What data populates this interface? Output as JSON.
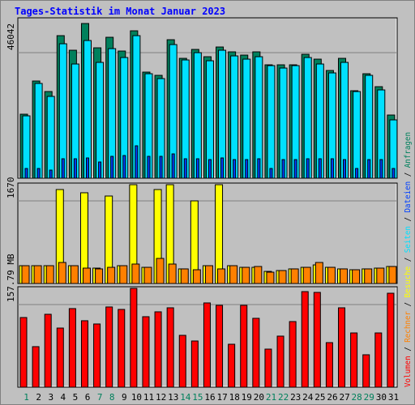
{
  "chart_data": [
    {
      "type": "bar",
      "title": "Tages-Statistik im Monat Januar 2023",
      "ylim": [
        0,
        58815
      ],
      "yticks": [
        46042
      ],
      "series": [
        {
          "name": "Anfragen",
          "color": "#00805c",
          "values": [
            23466,
            35640,
            31779,
            52272,
            46926,
            56727,
            47817,
            51678,
            46629,
            54054,
            38907,
            37719,
            50787,
            43956,
            47223,
            44550,
            48114,
            46332,
            45144,
            46332,
            41580,
            41580,
            41580,
            45441,
            43659,
            39501,
            43956,
            32076,
            38313,
            33561,
            23166
          ]
        },
        {
          "name": "Seiten",
          "color": "#00e0ff",
          "values": [
            22869,
            34749,
            29997,
            49302,
            41877,
            50490,
            42471,
            47520,
            44253,
            52272,
            38313,
            36531,
            49005,
            43362,
            46035,
            43065,
            46926,
            44847,
            43659,
            44550,
            41283,
            40392,
            41283,
            44253,
            41877,
            38610,
            42471,
            31779,
            37719,
            32373,
            21384
          ]
        },
        {
          "name": "Dateien",
          "color": "#0040ff",
          "values": [
            3564,
            3564,
            2970,
            7128,
            7128,
            7425,
            5940,
            8019,
            8316,
            11880,
            8019,
            8019,
            8910,
            7128,
            7128,
            6831,
            7425,
            6831,
            6831,
            7128,
            3564,
            6831,
            6831,
            7128,
            7128,
            7128,
            6831,
            3564,
            6831,
            6831,
            3564
          ]
        }
      ]
    },
    {
      "type": "bar",
      "ylim": [
        0,
        2030
      ],
      "yticks": [
        1670
      ],
      "series": [
        {
          "name": "Besuche",
          "color": "#ffff00",
          "values": [
            360,
            360,
            360,
            1899,
            360,
            1834,
            311,
            1768,
            360,
            1997,
            327,
            1899,
            1997,
            295,
            1670,
            360,
            1997,
            360,
            327,
            327,
            245,
            262,
            295,
            327,
            376,
            327,
            295,
            278,
            295,
            311,
            344
          ]
        },
        {
          "name": "Rechner",
          "color": "#ff8000",
          "values": [
            360,
            360,
            360,
            425,
            360,
            311,
            295,
            327,
            360,
            393,
            327,
            507,
            393,
            295,
            278,
            360,
            295,
            360,
            327,
            344,
            229,
            262,
            295,
            327,
            425,
            327,
            295,
            278,
            295,
            311,
            344
          ]
        }
      ]
    },
    {
      "type": "bar",
      "ylim": [
        0,
        191.8
      ],
      "yticks": [
        {
          "value": 157.79,
          "label": "157.79 MB"
        }
      ],
      "categories": [
        "1",
        "2",
        "3",
        "4",
        "5",
        "6",
        "7",
        "8",
        "9",
        "10",
        "11",
        "12",
        "13",
        "14",
        "15",
        "16",
        "17",
        "18",
        "19",
        "20",
        "21",
        "22",
        "23",
        "24",
        "25",
        "26",
        "27",
        "28",
        "29",
        "30",
        "31"
      ],
      "category_colors": [
        "#00805c",
        "#000000",
        "#000000",
        "#000000",
        "#000000",
        "#000000",
        "#00805c",
        "#00805c",
        "#000000",
        "#000000",
        "#000000",
        "#000000",
        "#000000",
        "#00805c",
        "#00805c",
        "#000000",
        "#000000",
        "#000000",
        "#000000",
        "#000000",
        "#00805c",
        "#00805c",
        "#000000",
        "#000000",
        "#000000",
        "#000000",
        "#000000",
        "#00805c",
        "#00805c",
        "#000000",
        "#000000"
      ],
      "series": [
        {
          "name": "Volumen",
          "color": "#ff0000",
          "values": [
            133.0,
            77.4,
            139.2,
            112.9,
            150.1,
            126.9,
            120.7,
            153.2,
            148.5,
            188.7,
            134.6,
            143.9,
            151.6,
            99.0,
            88.2,
            160.9,
            156.3,
            82.0,
            156.3,
            131.5,
            72.7,
            97.5,
            125.3,
            182.5,
            181.0,
            85.1,
            151.6,
            103.6,
            61.9,
            103.6,
            179.4
          ]
        }
      ]
    }
  ]
}
